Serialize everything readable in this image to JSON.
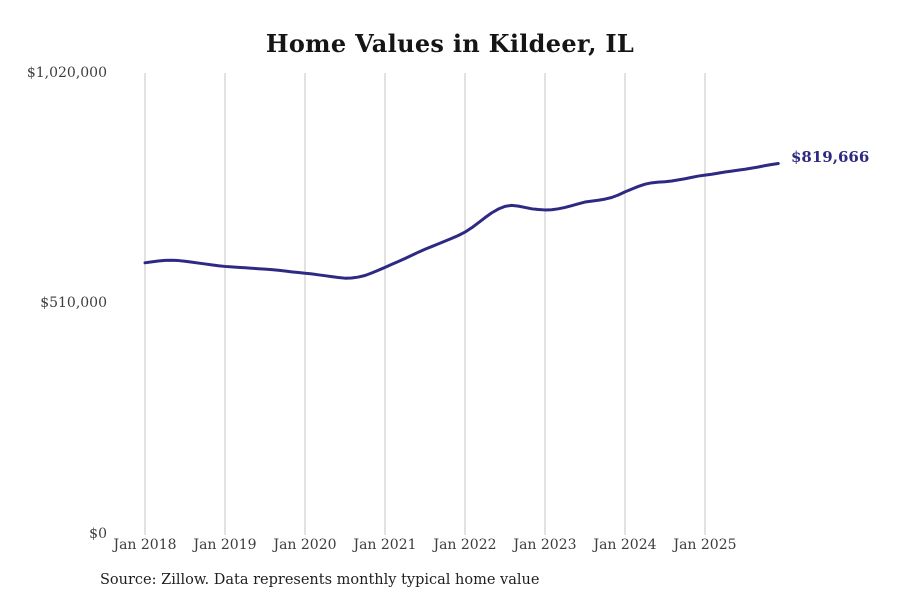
{
  "chart_data": {
    "type": "line",
    "title": "Home Values in Kildeer, IL",
    "xlabel": "",
    "ylabel": "",
    "x_interval": "monthly",
    "x_start": "Jan 2018",
    "x_end": "Dec 2025",
    "x_tick_labels": [
      "Jan 2018",
      "Jan 2019",
      "Jan 2020",
      "Jan 2021",
      "Jan 2022",
      "Jan 2023",
      "Jan 2024",
      "Jan 2025"
    ],
    "y_tick_labels": [
      "$0",
      "$510,000",
      "$1,020,000"
    ],
    "ylim": [
      0,
      1020000
    ],
    "grid": "vertical-only",
    "legend": "none",
    "values": [
      600000,
      602000,
      604000,
      605500,
      605800,
      605000,
      603500,
      601500,
      599500,
      597500,
      595500,
      593500,
      592000,
      591000,
      590000,
      589000,
      588000,
      587000,
      586000,
      585000,
      583500,
      582000,
      580000,
      578500,
      577000,
      575500,
      573500,
      571500,
      569500,
      567500,
      566000,
      566500,
      568500,
      572000,
      577500,
      583500,
      590000,
      596500,
      603000,
      609500,
      616500,
      623500,
      630000,
      636000,
      642000,
      648000,
      654000,
      660500,
      668000,
      677500,
      688500,
      700000,
      710500,
      719000,
      725000,
      727000,
      725500,
      722500,
      719500,
      718000,
      717000,
      717500,
      719500,
      722500,
      726500,
      730500,
      734500,
      736500,
      738500,
      741000,
      744500,
      750000,
      757000,
      763000,
      769000,
      774000,
      777000,
      778500,
      779500,
      781000,
      783500,
      786000,
      789000,
      792000,
      794000,
      796000,
      798500,
      801000,
      803000,
      805000,
      807000,
      809500,
      812000,
      815000,
      817500,
      819666
    ],
    "final_value": 819666,
    "final_value_label": "$819,666"
  },
  "source_note": "Source: Zillow. Data represents monthly typical home value",
  "colors": {
    "line": "#2e2a84",
    "final_label": "#2e2a84",
    "gridline": "#c4c4c4",
    "title": "#151515",
    "axis_text": "#3d3d3d",
    "source_text": "#1f1f1f",
    "background": "#ffffff"
  }
}
